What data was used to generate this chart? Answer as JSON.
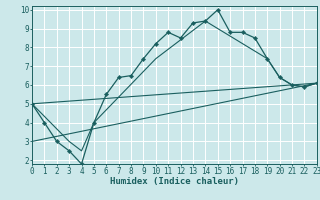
{
  "title": "",
  "xlabel": "Humidex (Indice chaleur)",
  "bg_color": "#cce8ea",
  "grid_color": "#ffffff",
  "line_color": "#1a5f5f",
  "line1_x": [
    0,
    1,
    2,
    3,
    4,
    5,
    6,
    7,
    8,
    9,
    10,
    11,
    12,
    13,
    14,
    15,
    16,
    17,
    18,
    19,
    20,
    21,
    22,
    23
  ],
  "line1_y": [
    5.0,
    4.0,
    3.0,
    2.5,
    1.8,
    4.0,
    5.5,
    6.4,
    6.5,
    7.4,
    8.2,
    8.8,
    8.5,
    9.3,
    9.4,
    10.0,
    8.8,
    8.8,
    8.5,
    7.4,
    6.4,
    6.0,
    5.9,
    6.1
  ],
  "line2_x": [
    0,
    3,
    4,
    5,
    10,
    14,
    19,
    20,
    21,
    22,
    23
  ],
  "line2_y": [
    5.0,
    3.0,
    2.5,
    4.0,
    7.4,
    9.4,
    7.4,
    6.4,
    6.0,
    5.9,
    6.1
  ],
  "line3_x": [
    0,
    23
  ],
  "line3_y": [
    5.0,
    6.1
  ],
  "line4_x": [
    0,
    23
  ],
  "line4_y": [
    3.0,
    6.1
  ],
  "xlim": [
    0,
    23
  ],
  "ylim": [
    1.8,
    10.2
  ],
  "xticks": [
    0,
    1,
    2,
    3,
    4,
    5,
    6,
    7,
    8,
    9,
    10,
    11,
    12,
    13,
    14,
    15,
    16,
    17,
    18,
    19,
    20,
    21,
    22,
    23
  ],
  "yticks": [
    2,
    3,
    4,
    5,
    6,
    7,
    8,
    9,
    10
  ],
  "tick_fontsize": 5.5,
  "xlabel_fontsize": 6.5
}
